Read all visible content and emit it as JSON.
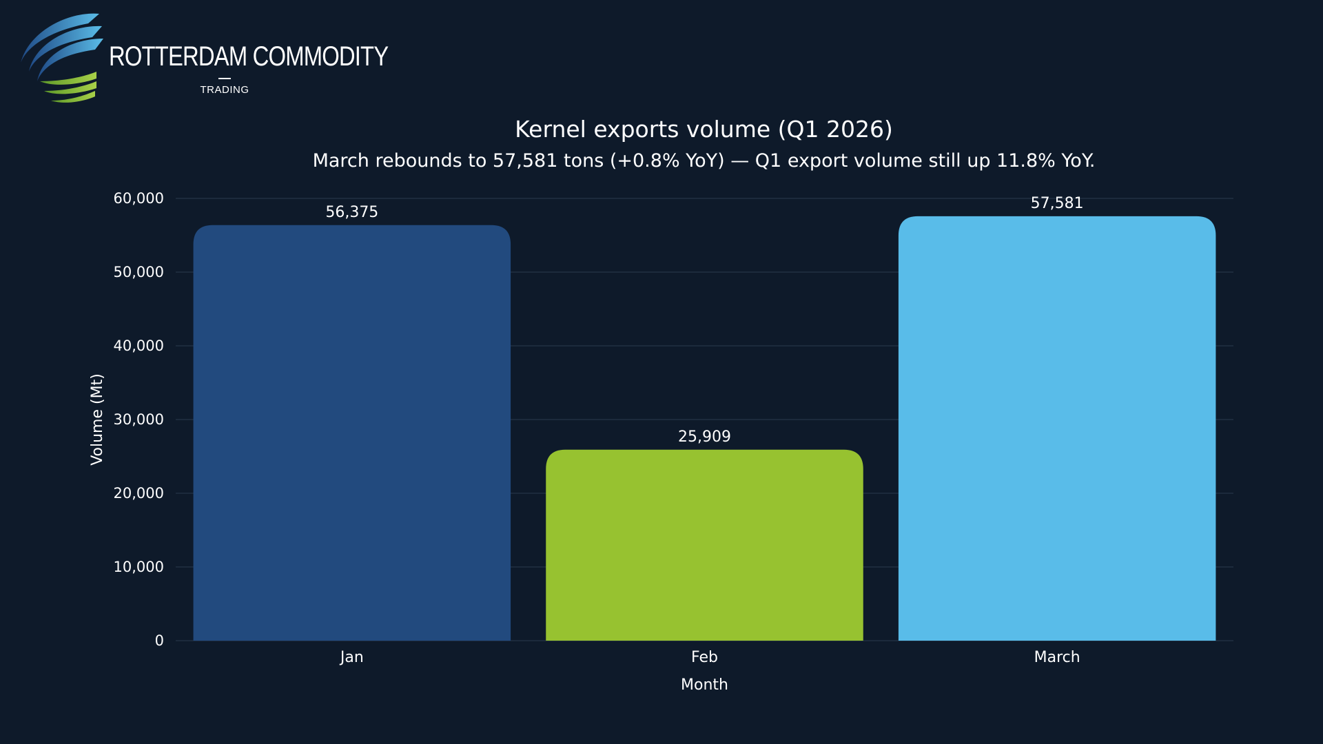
{
  "brand": {
    "name": "ROTTERDAM COMMODITY",
    "tagline": "TRADING",
    "colors": {
      "blue": "#2f6fb3",
      "light_blue": "#5bbde8",
      "green": "#8cc63f"
    }
  },
  "chart_data": {
    "type": "bar",
    "title": "Kernel exports volume (Q1 2026)",
    "subtitle": "March rebounds to 57,581 tons (+0.8% YoY) — Q1 export volume still up 11.8% YoY.",
    "xlabel": "Month",
    "ylabel": "Volume (Mt)",
    "categories": [
      "Jan",
      "Feb",
      "March"
    ],
    "values": [
      56375,
      25909,
      57581
    ],
    "value_labels": [
      "56,375",
      "25,909",
      "57,581"
    ],
    "colors": [
      "#224a7e",
      "#97c230",
      "#59bce9"
    ],
    "ylim": [
      0,
      60000
    ],
    "yticks": [
      0,
      10000,
      20000,
      30000,
      40000,
      50000,
      60000
    ],
    "ytick_labels": [
      "0",
      "10,000",
      "20,000",
      "30,000",
      "40,000",
      "50,000",
      "60,000"
    ],
    "grid": true,
    "legend": "none"
  }
}
